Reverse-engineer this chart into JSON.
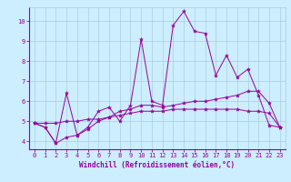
{
  "xlabel": "Windchill (Refroidissement éolien,°C)",
  "background_color": "#cceeff",
  "line_color": "#990099",
  "grid_color": "#aaccdd",
  "xlim": [
    -0.5,
    23.5
  ],
  "ylim": [
    3.6,
    10.7
  ],
  "xticks": [
    0,
    1,
    2,
    3,
    4,
    5,
    6,
    7,
    8,
    9,
    10,
    11,
    12,
    13,
    14,
    15,
    16,
    17,
    18,
    19,
    20,
    21,
    22,
    23
  ],
  "yticks": [
    4,
    5,
    6,
    7,
    8,
    9,
    10
  ],
  "series": [
    [
      4.9,
      4.7,
      3.9,
      6.4,
      4.3,
      4.7,
      5.5,
      5.7,
      5.0,
      5.8,
      9.1,
      6.0,
      5.8,
      9.8,
      10.5,
      9.5,
      9.4,
      7.3,
      8.3,
      7.2,
      7.6,
      6.3,
      4.8,
      4.7
    ],
    [
      4.9,
      4.7,
      3.9,
      4.2,
      4.3,
      4.6,
      5.0,
      5.2,
      5.5,
      5.6,
      5.8,
      5.8,
      5.7,
      5.8,
      5.9,
      6.0,
      6.0,
      6.1,
      6.2,
      6.3,
      6.5,
      6.5,
      5.9,
      4.7
    ],
    [
      4.9,
      4.9,
      4.9,
      5.0,
      5.0,
      5.1,
      5.1,
      5.2,
      5.3,
      5.4,
      5.5,
      5.5,
      5.5,
      5.6,
      5.6,
      5.6,
      5.6,
      5.6,
      5.6,
      5.6,
      5.5,
      5.5,
      5.4,
      4.7
    ]
  ],
  "tick_fontsize": 5.0,
  "xlabel_fontsize": 5.5
}
